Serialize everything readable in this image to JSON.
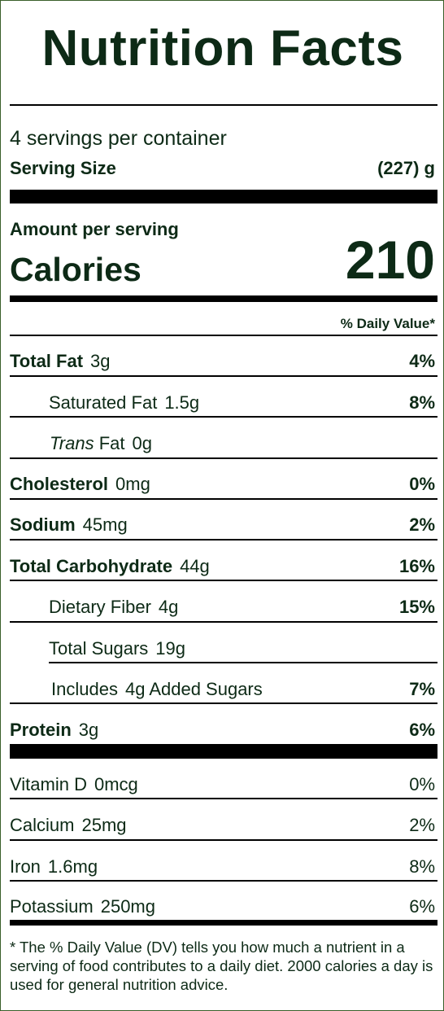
{
  "label": {
    "title": "Nutrition Facts",
    "servings_per_container": "4 servings per container",
    "serving_size_label": "Serving Size",
    "serving_size_value": "(227) g",
    "amount_per_serving": "Amount per serving",
    "calories_label": "Calories",
    "calories_value": "210",
    "daily_value_header": "% Daily Value*",
    "nutrients": [
      {
        "name": "Total Fat",
        "amount": "3g",
        "dv": "4%"
      },
      {
        "name": "Saturated Fat",
        "amount": "1.5g",
        "dv": "8%"
      },
      {
        "name_italic": "Trans",
        "name": "Fat",
        "amount": "0g",
        "dv": ""
      },
      {
        "name": "Cholesterol",
        "amount": "0mg",
        "dv": "0%"
      },
      {
        "name": "Sodium",
        "amount": "45mg",
        "dv": "2%"
      },
      {
        "name": "Total Carbohydrate",
        "amount": "44g",
        "dv": "16%"
      },
      {
        "name": "Dietary Fiber",
        "amount": "4g",
        "dv": "15%"
      },
      {
        "name": "Total Sugars",
        "amount": "19g",
        "dv": ""
      },
      {
        "name": "Includes",
        "amount": "4g Added Sugars",
        "dv": "7%"
      },
      {
        "name": "Protein",
        "amount": "3g",
        "dv": "6%"
      }
    ],
    "vitamins": [
      {
        "name": "Vitamin D",
        "amount": "0mcg",
        "dv": "0%"
      },
      {
        "name": "Calcium",
        "amount": "25mg",
        "dv": "2%"
      },
      {
        "name": "Iron",
        "amount": "1.6mg",
        "dv": "8%"
      },
      {
        "name": "Potassium",
        "amount": "250mg",
        "dv": "6%"
      }
    ],
    "footnote": "* The % Daily Value (DV) tells you how much a nutrient in a serving of food contributes to a daily diet. 2000 calories a day is used for general nutrition advice."
  }
}
